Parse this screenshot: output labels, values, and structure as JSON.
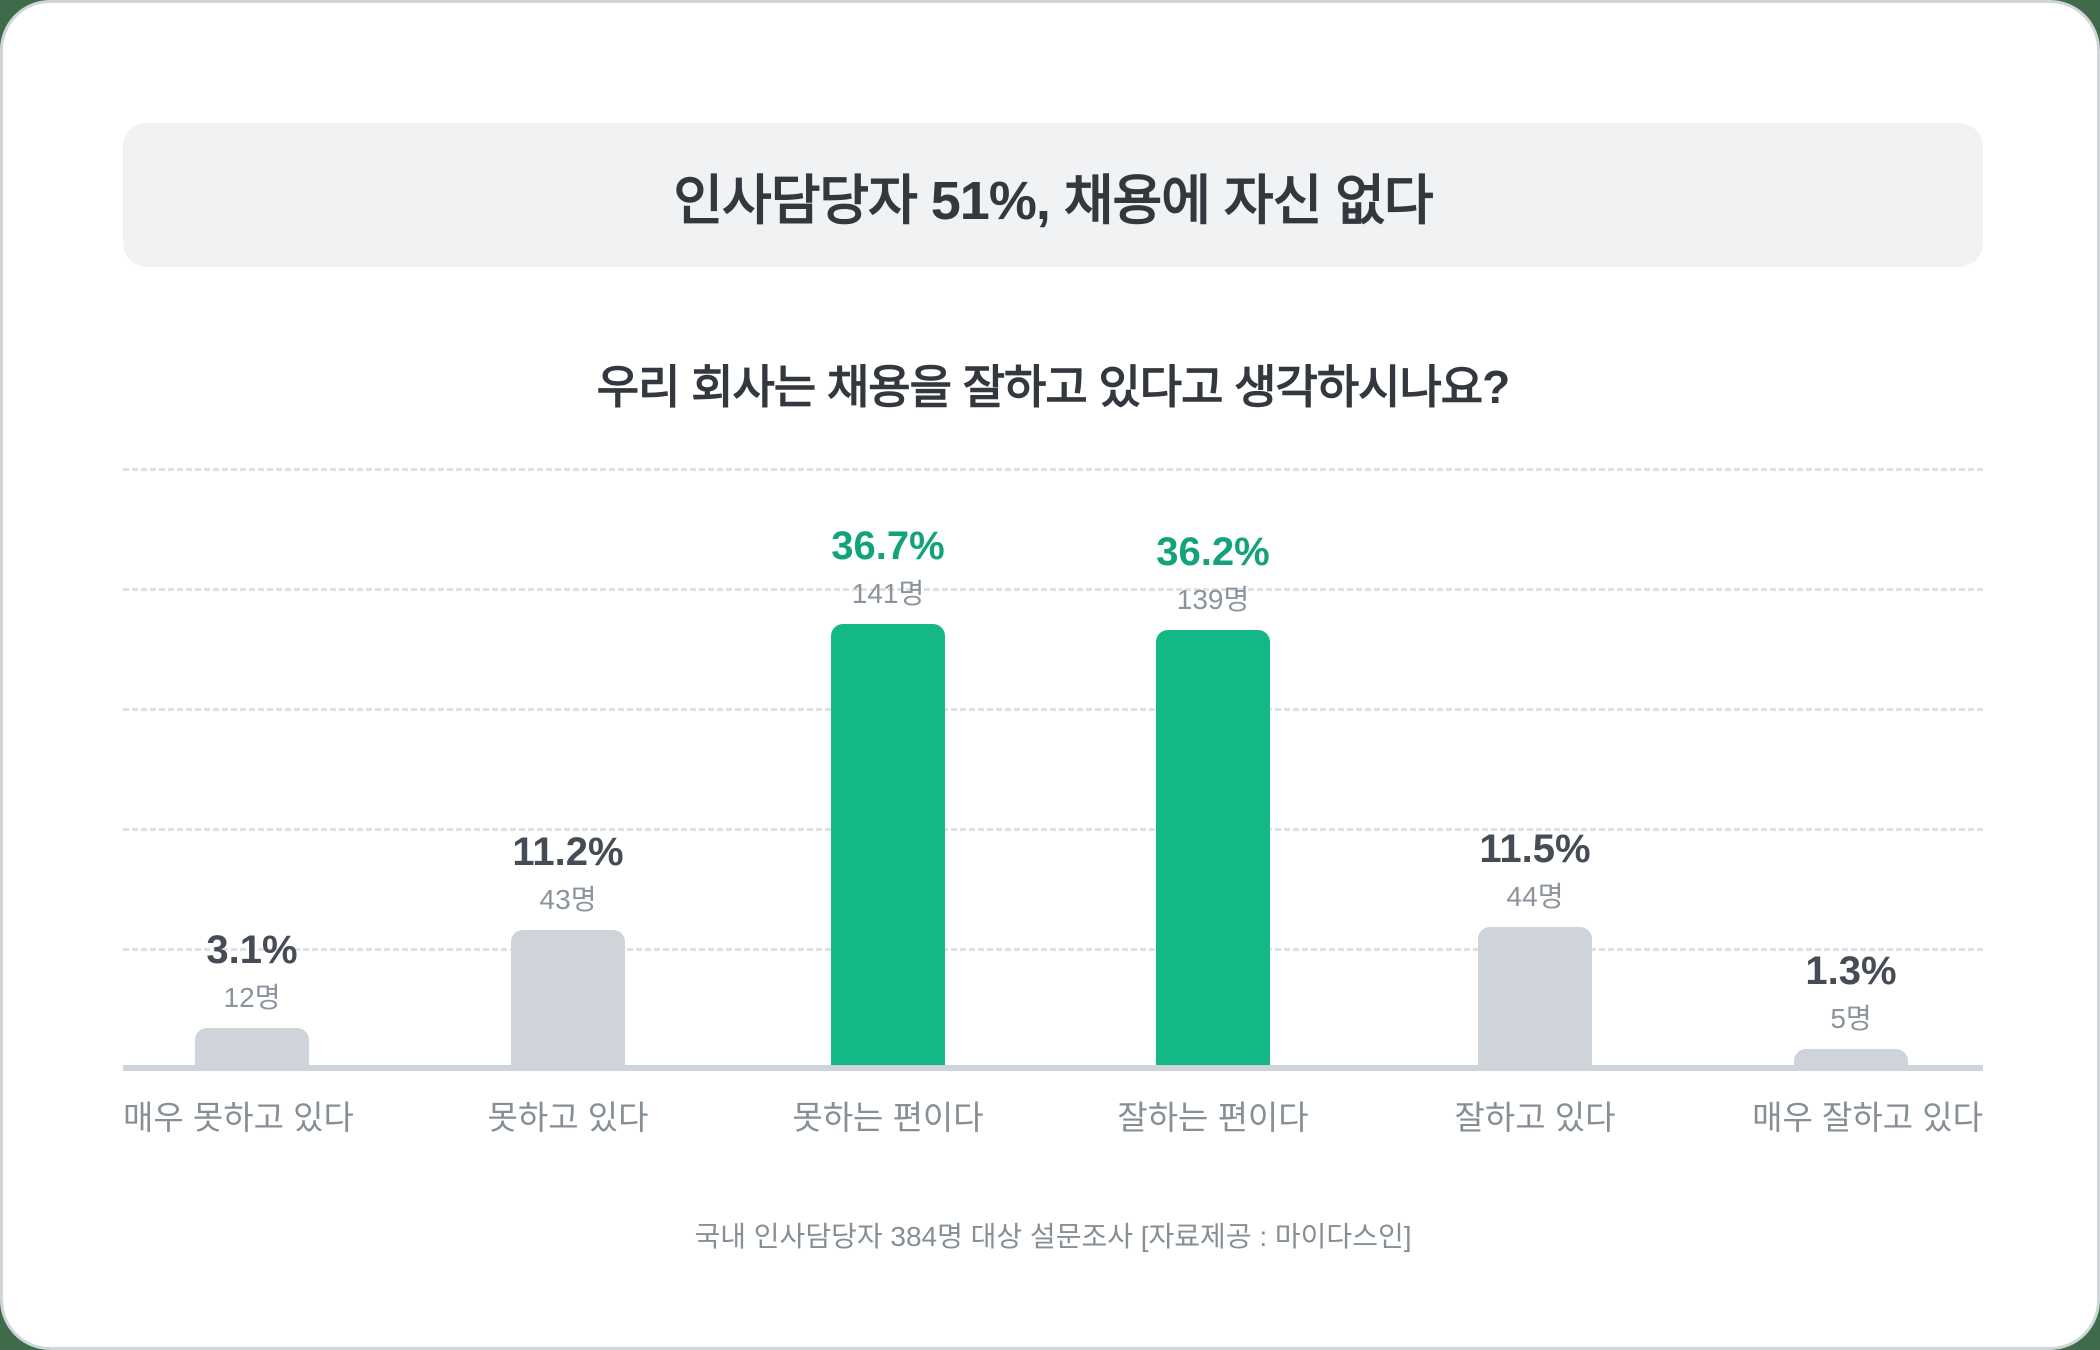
{
  "header": {
    "title": "인사담당자 51%, 채용에 자신 없다"
  },
  "question": "우리 회사는 채용을 잘하고 있다고 생각하시나요?",
  "footer": "국내 인사담당자 384명 대상 설문조사 [자료제공 : 마이다스인]",
  "colors": {
    "highlight_bar": "#14b886",
    "highlight_text": "#13a37a",
    "default_bar": "#cfd4da",
    "text_dark": "#33383f"
  },
  "bars": [
    {
      "label": "매우 못하고 있다",
      "pct": "3.1%",
      "count": "12명",
      "value": 3.1,
      "highlight": false
    },
    {
      "label": "못하고 있다",
      "pct": "11.2%",
      "count": "43명",
      "value": 11.2,
      "highlight": false
    },
    {
      "label": "못하는 편이다",
      "pct": "36.7%",
      "count": "141명",
      "value": 36.7,
      "highlight": true
    },
    {
      "label": "잘하는 편이다",
      "pct": "36.2%",
      "count": "139명",
      "value": 36.2,
      "highlight": true
    },
    {
      "label": "잘하고 있다",
      "pct": "11.5%",
      "count": "44명",
      "value": 11.5,
      "highlight": false
    },
    {
      "label": "매우 잘하고 있다",
      "pct": "1.3%",
      "count": "5명",
      "value": 1.3,
      "highlight": false
    }
  ],
  "chart_data": {
    "type": "bar",
    "title": "인사담당자 51%, 채용에 자신 없다",
    "subtitle": "우리 회사는 채용을 잘하고 있다고 생각하시나요?",
    "categories": [
      "매우 못하고 있다",
      "못하고 있다",
      "못하는 편이다",
      "잘하는 편이다",
      "잘하고 있다",
      "매우 잘하고 있다"
    ],
    "values": [
      3.1,
      11.2,
      36.7,
      36.2,
      11.5,
      1.3
    ],
    "counts": [
      12,
      43,
      141,
      139,
      44,
      5
    ],
    "unit": "%",
    "highlighted": [
      "못하는 편이다",
      "잘하는 편이다"
    ],
    "xlabel": "",
    "ylabel": "",
    "ylim": [
      0,
      50
    ],
    "grid": true,
    "legend": null,
    "source": "국내 인사담당자 384명 대상 설문조사 [자료제공 : 마이다스인]"
  }
}
